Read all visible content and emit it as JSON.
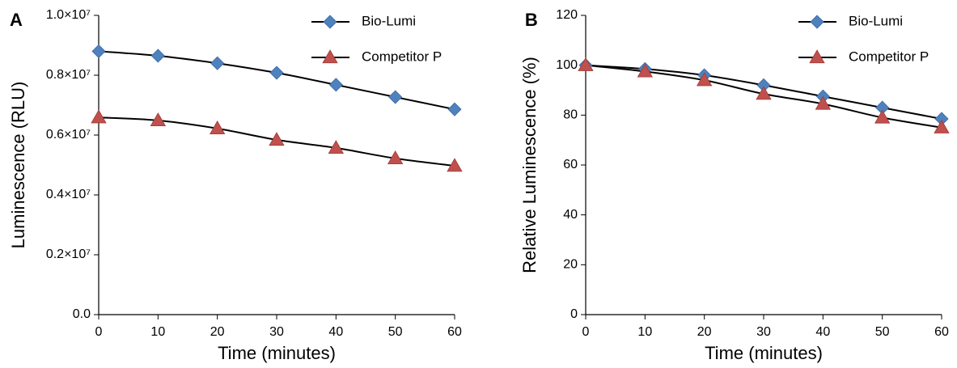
{
  "chart_data": [
    {
      "type": "line",
      "panel_label": "A",
      "x_label": "Time (minutes)",
      "y_label": "Luminescence (RLU)",
      "x": [
        0,
        10,
        20,
        30,
        40,
        50,
        60
      ],
      "xlim": [
        0,
        60
      ],
      "xticks": [
        0,
        10,
        20,
        30,
        40,
        50,
        60
      ],
      "ylim": [
        0,
        10000000
      ],
      "yticks": [
        {
          "value": 0,
          "label": "0.0"
        },
        {
          "value": 2000000,
          "label": "0.2×10⁷"
        },
        {
          "value": 4000000,
          "label": "0.4×10⁷"
        },
        {
          "value": 6000000,
          "label": "0.6×10⁷"
        },
        {
          "value": 8000000,
          "label": "0.8×10⁷"
        },
        {
          "value": 10000000,
          "label": "1.0×10⁷"
        }
      ],
      "grid": false,
      "legend": "upper right",
      "series": [
        {
          "name": "Bio-Lumi",
          "color": "#4f81bd",
          "marker": "diamond",
          "values": [
            8800000,
            8650000,
            8400000,
            8080000,
            7680000,
            7270000,
            6860000
          ]
        },
        {
          "name": "Competitor P",
          "color": "#c0504d",
          "marker": "triangle",
          "values": [
            6590000,
            6490000,
            6220000,
            5840000,
            5570000,
            5220000,
            4970000
          ]
        }
      ]
    },
    {
      "type": "line",
      "panel_label": "B",
      "x_label": "Time (minutes)",
      "y_label": "Relative Luminescence (%)",
      "x": [
        0,
        10,
        20,
        30,
        40,
        50,
        60
      ],
      "xlim": [
        0,
        60
      ],
      "xticks": [
        0,
        10,
        20,
        30,
        40,
        50,
        60
      ],
      "ylim": [
        0,
        120
      ],
      "yticks": [
        0,
        20,
        40,
        60,
        80,
        100,
        120
      ],
      "grid": false,
      "legend": "upper right",
      "series": [
        {
          "name": "Bio-Lumi",
          "color": "#4f81bd",
          "marker": "diamond",
          "values": [
            100,
            98.5,
            96,
            92,
            87.5,
            83,
            78.5
          ]
        },
        {
          "name": "Competitor P",
          "color": "#c0504d",
          "marker": "triangle",
          "values": [
            100,
            97.5,
            94,
            88.5,
            84.5,
            79,
            75
          ]
        }
      ]
    }
  ]
}
